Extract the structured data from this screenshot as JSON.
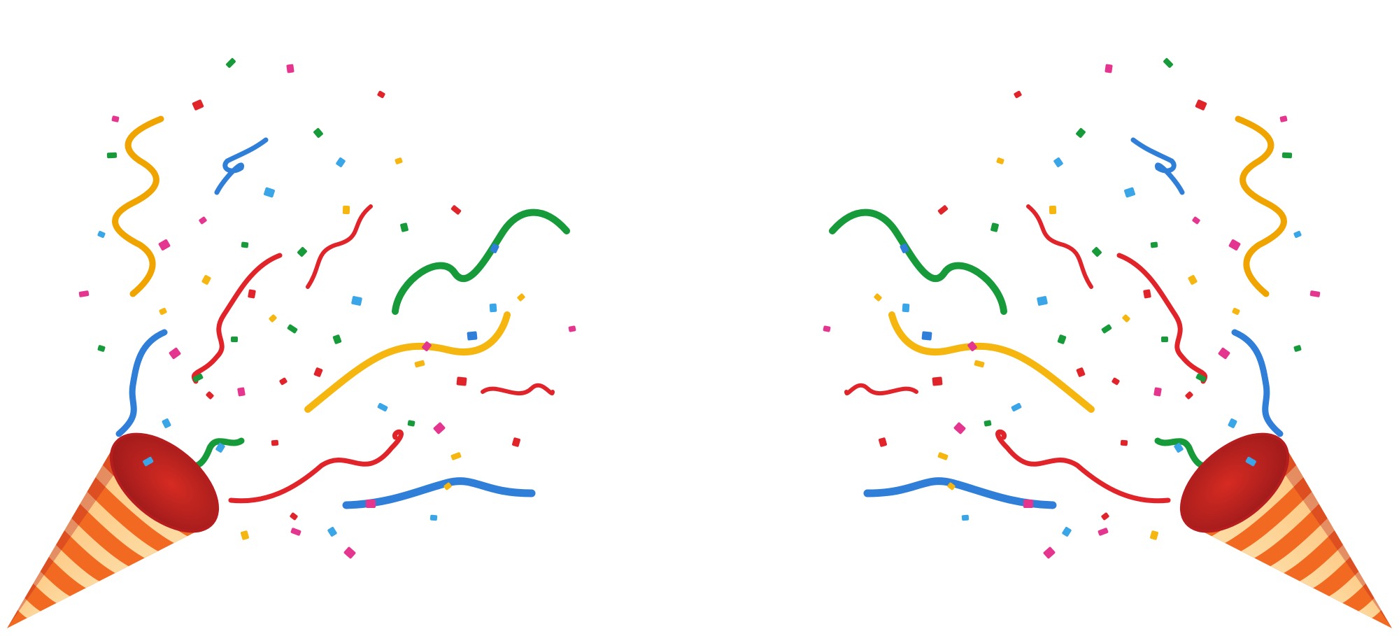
{
  "scene": {
    "subject": "party-poppers",
    "background_color": "#ffffff",
    "poppers": [
      {
        "name": "left",
        "mirrored": false
      },
      {
        "name": "right",
        "mirrored": true
      }
    ],
    "palette": {
      "red": "#e0242a",
      "dark_red": "#b61d1f",
      "orange": "#f26a21",
      "cream": "#fde6b0",
      "yellow": "#f5b60f",
      "gold": "#f0a400",
      "green": "#169a3a",
      "blue": "#2f7ed8",
      "light_blue": "#3aa6e8",
      "pink": "#e4358f"
    }
  }
}
